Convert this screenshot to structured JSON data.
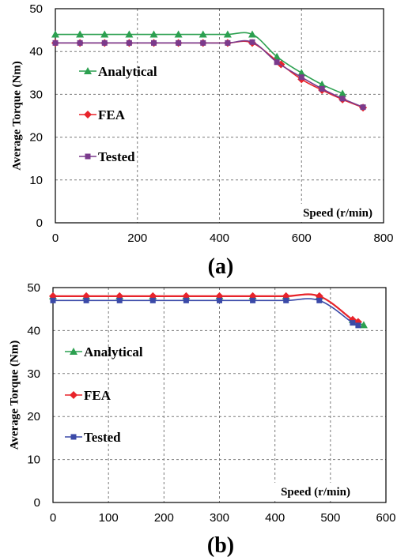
{
  "colors": {
    "analytical": "#2ca050",
    "fea": "#e8232a",
    "tested": "#3b4aa8",
    "tested_a": "#7a3a8c",
    "grid": "#7a7a7a"
  },
  "chart_data": [
    {
      "type": "line",
      "panel_label": "(a)",
      "ylabel": "Average Torque (Nm)",
      "xlabel": "Speed (r/min)",
      "xlim": [
        0,
        800
      ],
      "ylim": [
        0,
        50
      ],
      "xticks": [
        0,
        200,
        400,
        600,
        800
      ],
      "yticks": [
        0,
        10,
        20,
        30,
        40,
        50
      ],
      "grid": true,
      "legend_position": "left",
      "series": [
        {
          "name": "Analytical",
          "marker": "triangle",
          "x": [
            0,
            60,
            120,
            180,
            240,
            300,
            360,
            420,
            480,
            540,
            600,
            650,
            700
          ],
          "y": [
            44,
            44,
            44,
            44,
            44,
            44,
            44,
            44,
            44,
            38.8,
            35,
            32.3,
            30.2
          ]
        },
        {
          "name": "FEA",
          "marker": "diamond",
          "x": [
            0,
            60,
            120,
            180,
            240,
            300,
            360,
            420,
            480,
            550,
            600,
            650,
            700,
            750
          ],
          "y": [
            42,
            42,
            42,
            42,
            42,
            42,
            42,
            42,
            42,
            37,
            33.5,
            31,
            28.8,
            26.9
          ]
        },
        {
          "name": "Tested",
          "marker": "square",
          "x": [
            0,
            60,
            120,
            180,
            240,
            300,
            360,
            420,
            480,
            540,
            600,
            650,
            700,
            750
          ],
          "y": [
            42,
            42,
            42,
            42,
            42,
            42,
            42,
            42,
            42.2,
            37.5,
            34,
            31.3,
            29,
            27
          ]
        }
      ]
    },
    {
      "type": "line",
      "panel_label": "(b)",
      "ylabel": "Average Torque (Nm)",
      "xlabel": "Speed (r/min)",
      "xlim": [
        0,
        600
      ],
      "ylim": [
        0,
        50
      ],
      "xticks": [
        0,
        100,
        200,
        300,
        400,
        500,
        600
      ],
      "yticks": [
        0,
        10,
        20,
        30,
        40,
        50
      ],
      "grid": true,
      "legend_position": "left",
      "series": [
        {
          "name": "Analytical",
          "marker": "triangle",
          "x": [
            0,
            60,
            120,
            180,
            240,
            300,
            360,
            420,
            480,
            540,
            560
          ],
          "y": [
            48,
            48,
            48,
            48,
            48,
            48,
            48,
            48,
            48,
            42.5,
            41.3
          ]
        },
        {
          "name": "FEA",
          "marker": "diamond",
          "x": [
            0,
            60,
            120,
            180,
            240,
            300,
            360,
            420,
            480,
            540,
            550
          ],
          "y": [
            48,
            48,
            48,
            48,
            48,
            48,
            48,
            48,
            48,
            42.5,
            42
          ]
        },
        {
          "name": "Tested",
          "marker": "square",
          "x": [
            0,
            60,
            120,
            180,
            240,
            300,
            360,
            420,
            480,
            540,
            550
          ],
          "y": [
            47,
            47,
            47,
            47,
            47,
            47,
            47,
            47,
            47,
            41.8,
            41.2
          ]
        }
      ]
    }
  ]
}
